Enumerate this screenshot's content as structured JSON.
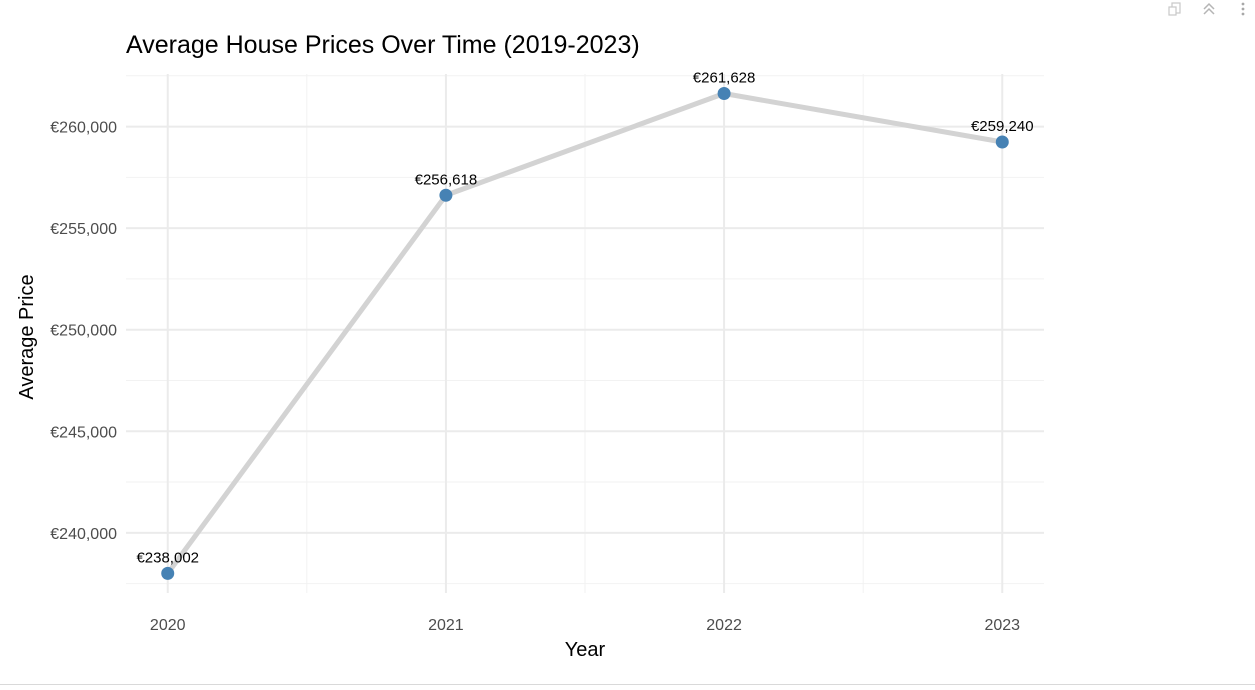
{
  "toolbar": {
    "icons": [
      "export-icon",
      "collapse-icon",
      "more-icon"
    ]
  },
  "colors": {
    "point": "#4682b4",
    "line": "#d3d3d3",
    "grid_major": "#ebebeb",
    "grid_minor": "#f2f2f2",
    "tick_text": "#4d4d4d"
  },
  "chart_data": {
    "type": "line",
    "title": "Average House Prices Over Time (2019-2023)",
    "xlabel": "Year",
    "ylabel": "Average Price",
    "x": [
      2020,
      2021,
      2022,
      2023
    ],
    "series": [
      {
        "values": [
          238002,
          256618,
          261628,
          259240
        ],
        "labels": [
          "€238,002",
          "€256,618",
          "€261,628",
          "€259,240"
        ]
      }
    ],
    "xticks": [
      "2020",
      "2021",
      "2022",
      "2023"
    ],
    "yticks": [
      240000,
      245000,
      250000,
      255000,
      260000
    ],
    "ytick_labels": [
      "€240,000",
      "€245,000",
      "€250,000",
      "€255,000",
      "€260,000"
    ],
    "xlim": [
      2019.85,
      2023.15
    ],
    "ylim": [
      237037,
      262588
    ],
    "grid": true,
    "legend": "none"
  }
}
